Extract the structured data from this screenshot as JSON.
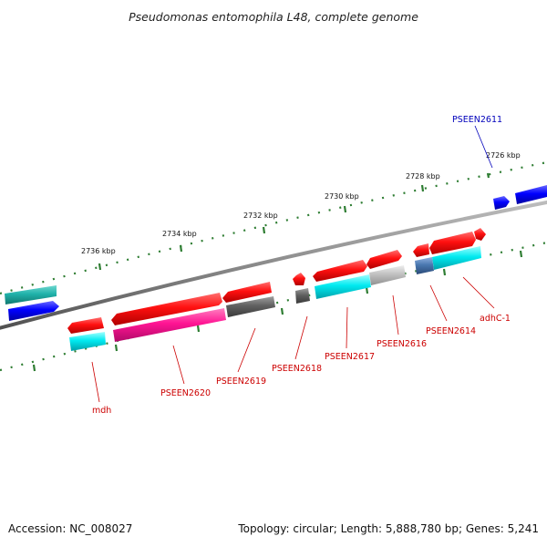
{
  "header": {
    "title": "Pseudomonas entomophila L48, complete genome"
  },
  "footer": {
    "accession": "Accession: NC_008027",
    "topology": "Topology: circular; Length: 5,888,780 bp; Genes: 5,241"
  },
  "ticks": [
    "2726 kbp",
    "2728 kbp",
    "2730 kbp",
    "2732 kbp",
    "2734 kbp",
    "2736 kbp"
  ],
  "gene_labels": [
    {
      "name": "PSEEN2611",
      "color": "#0000bb"
    },
    {
      "name": "adhC-1",
      "color": "#cc0000"
    },
    {
      "name": "PSEEN2614",
      "color": "#cc0000"
    },
    {
      "name": "PSEEN2616",
      "color": "#cc0000"
    },
    {
      "name": "PSEEN2617",
      "color": "#cc0000"
    },
    {
      "name": "PSEEN2618",
      "color": "#cc0000"
    },
    {
      "name": "PSEEN2619",
      "color": "#cc0000"
    },
    {
      "name": "PSEEN2620",
      "color": "#cc0000"
    },
    {
      "name": "mdh",
      "color": "#cc0000"
    }
  ],
  "colors": {
    "backbone": "#808080",
    "tick": "#2e7d32",
    "cds": "#ff1010",
    "gene_blue": "#0000ff",
    "cyan": "#00e5ee",
    "teal": "#20b2aa",
    "magenta": "#ff1493",
    "dark_gray": "#606060",
    "light_gray": "#c0c0c0",
    "steel_blue": "#4a78b0"
  }
}
